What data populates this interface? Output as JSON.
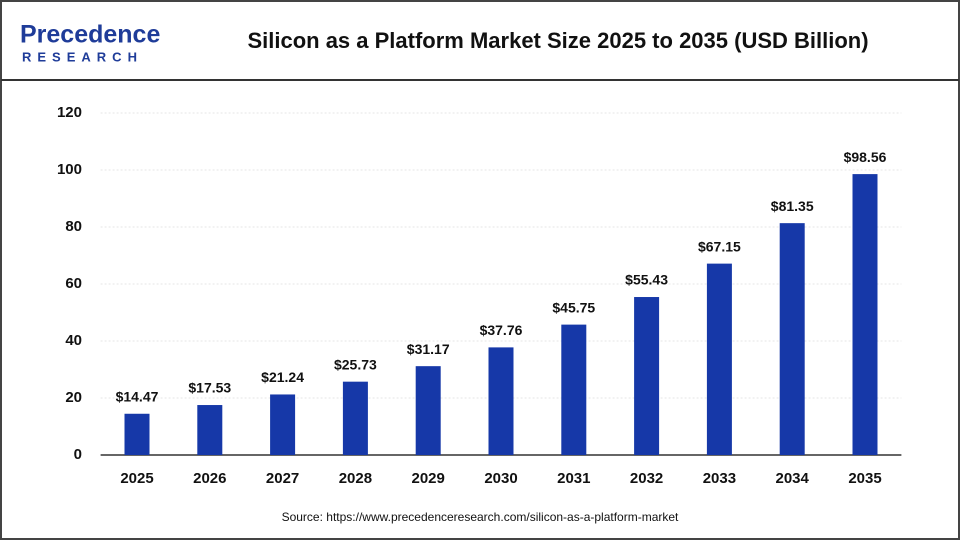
{
  "logo": {
    "name": "Precedence",
    "sub": "RESEARCH"
  },
  "chart_data": {
    "type": "bar",
    "title": "Silicon as a Platform Market Size 2025 to 2035 (USD Billion)",
    "source": "Source: https://www.precedenceresearch.com/silicon-as-a-platform-market",
    "categories": [
      "2025",
      "2026",
      "2027",
      "2028",
      "2029",
      "2030",
      "2031",
      "2032",
      "2033",
      "2034",
      "2035"
    ],
    "values": [
      14.47,
      17.53,
      21.24,
      25.73,
      31.17,
      37.76,
      45.75,
      55.43,
      67.15,
      81.35,
      98.56
    ],
    "value_labels": [
      "$14.47",
      "$17.53",
      "$21.24",
      "$25.73",
      "$31.17",
      "$37.76",
      "$45.75",
      "$55.43",
      "$67.15",
      "$81.35",
      "$98.56"
    ],
    "color": "#1638a8",
    "ylim": [
      0,
      120
    ],
    "yticks": [
      0,
      20,
      40,
      60,
      80,
      100,
      120
    ],
    "grid": true
  }
}
